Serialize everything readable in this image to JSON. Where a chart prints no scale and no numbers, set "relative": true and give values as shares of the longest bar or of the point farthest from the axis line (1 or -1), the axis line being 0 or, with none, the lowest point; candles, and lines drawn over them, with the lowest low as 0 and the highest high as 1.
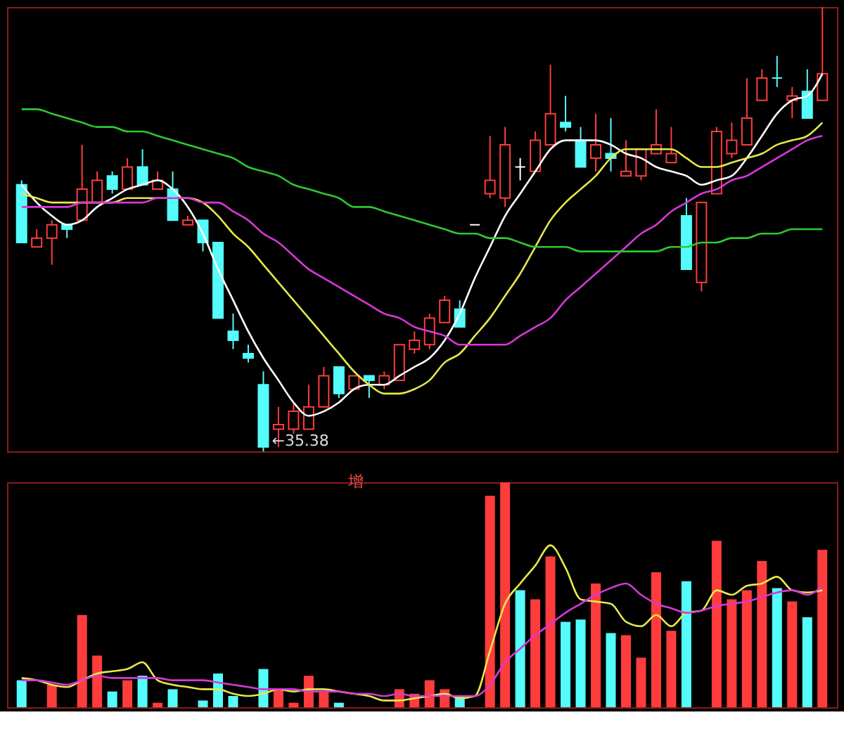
{
  "chart_data": [
    {
      "type": "candlestick",
      "relative": true,
      "categories": [
        null,
        null,
        null,
        null,
        null,
        null,
        null,
        null,
        null,
        null,
        null,
        null,
        null,
        null,
        null,
        null,
        null,
        null,
        null,
        null,
        null,
        null,
        null,
        null,
        null,
        null,
        null,
        null,
        null,
        null,
        null,
        null,
        null,
        null,
        null,
        null,
        null,
        null,
        null,
        null,
        null,
        null,
        null,
        null,
        null,
        null,
        null,
        null,
        null,
        null,
        null,
        null,
        null,
        null
      ],
      "ohlc": [
        [
          0.6,
          0.61,
          0.47,
          0.47
        ],
        [
          0.46,
          0.5,
          0.46,
          0.48
        ],
        [
          0.48,
          0.52,
          0.42,
          0.51
        ],
        [
          0.51,
          0.51,
          0.48,
          0.5
        ],
        [
          0.52,
          0.69,
          0.52,
          0.59
        ],
        [
          0.56,
          0.63,
          0.56,
          0.61
        ],
        [
          0.62,
          0.63,
          0.58,
          0.59
        ],
        [
          0.59,
          0.66,
          0.59,
          0.64
        ],
        [
          0.64,
          0.68,
          0.6,
          0.6
        ],
        [
          0.59,
          0.63,
          0.59,
          0.61
        ],
        [
          0.59,
          0.63,
          0.52,
          0.52
        ],
        [
          0.51,
          0.53,
          0.51,
          0.52
        ],
        [
          0.52,
          0.52,
          0.45,
          0.47
        ],
        [
          0.47,
          0.47,
          0.3,
          0.3
        ],
        [
          0.27,
          0.31,
          0.23,
          0.25
        ],
        [
          0.22,
          0.24,
          0.2,
          0.21
        ],
        [
          0.15,
          0.18,
          0,
          0.01
        ],
        [
          0.05,
          0.1,
          0.01,
          0.06
        ],
        [
          0.05,
          0.11,
          0.04,
          0.09
        ],
        [
          0.05,
          0.15,
          0.05,
          0.1
        ],
        [
          0.1,
          0.19,
          0.1,
          0.17
        ],
        [
          0.19,
          0.19,
          0.12,
          0.13
        ],
        [
          0.14,
          0.17,
          0.14,
          0.17
        ],
        [
          0.17,
          0.17,
          0.12,
          0.16
        ],
        [
          0.15,
          0.18,
          0.14,
          0.17
        ],
        [
          0.16,
          0.24,
          0.16,
          0.24
        ],
        [
          0.23,
          0.27,
          0.22,
          0.25
        ],
        [
          0.24,
          0.31,
          0.23,
          0.3
        ],
        [
          0.29,
          0.35,
          0.29,
          0.34
        ],
        [
          0.32,
          0.34,
          0.28,
          0.28
        ],
        [
          0.51,
          0.51,
          0.51,
          0.51
        ],
        [
          0.58,
          0.71,
          0.57,
          0.61
        ],
        [
          0.57,
          0.73,
          0.55,
          0.69
        ],
        [
          0.64,
          0.66,
          0.61,
          0.64
        ],
        [
          0.63,
          0.72,
          0.63,
          0.7
        ],
        [
          0.69,
          0.87,
          0.69,
          0.76
        ],
        [
          0.74,
          0.8,
          0.72,
          0.73
        ],
        [
          0.7,
          0.73,
          0.64,
          0.64
        ],
        [
          0.66,
          0.76,
          0.63,
          0.69
        ],
        [
          0.67,
          0.75,
          0.63,
          0.66
        ],
        [
          0.62,
          0.7,
          0.62,
          0.63
        ],
        [
          0.62,
          0.68,
          0.61,
          0.68
        ],
        [
          0.67,
          0.77,
          0.67,
          0.69
        ],
        [
          0.65,
          0.73,
          0.65,
          0.67
        ],
        [
          0.53,
          0.57,
          0.41,
          0.41
        ],
        [
          0.38,
          0.56,
          0.36,
          0.56
        ],
        [
          0.58,
          0.73,
          0.58,
          0.72
        ],
        [
          0.67,
          0.74,
          0.66,
          0.7
        ],
        [
          0.69,
          0.84,
          0.69,
          0.75
        ],
        [
          0.79,
          0.86,
          0.79,
          0.84
        ],
        [
          0.84,
          0.89,
          0.82,
          0.84
        ],
        [
          0.79,
          0.82,
          0.75,
          0.8
        ],
        [
          0.81,
          0.86,
          0.75,
          0.75
        ],
        [
          0.79,
          1.0,
          0.79,
          0.85
        ]
      ],
      "colors": [
        "#54fcfc",
        "#ff3c3c",
        "#ff3c3c",
        "#54fcfc",
        "#ff3c3c",
        "#ff3c3c",
        "#54fcfc",
        "#ff3c3c",
        "#54fcfc",
        "#ff3c3c",
        "#54fcfc",
        "#ff3c3c",
        "#54fcfc",
        "#54fcfc",
        "#54fcfc",
        "#54fcfc",
        "#54fcfc",
        "#ff3c3c",
        "#ff3c3c",
        "#ff3c3c",
        "#ff3c3c",
        "#54fcfc",
        "#ff3c3c",
        "#54fcfc",
        "#ff3c3c",
        "#ff3c3c",
        "#ff3c3c",
        "#ff3c3c",
        "#ff3c3c",
        "#54fcfc",
        "#ffffff",
        "#ff3c3c",
        "#ff3c3c",
        "#ffffff",
        "#ff3c3c",
        "#ff3c3c",
        "#54fcfc",
        "#54fcfc",
        "#ff3c3c",
        "#54fcfc",
        "#ff3c3c",
        "#ff3c3c",
        "#ff3c3c",
        "#ff3c3c",
        "#54fcfc",
        "#ff3c3c",
        "#ff3c3c",
        "#ff3c3c",
        "#ff3c3c",
        "#ff3c3c",
        "#54fcfc",
        "#ff3c3c",
        "#54fcfc",
        "#ff3c3c"
      ],
      "series": [
        {
          "type": "line",
          "color": "#ffffff",
          "values": [
            0.6,
            0.56,
            0.53,
            0.51,
            0.52,
            0.55,
            0.57,
            0.59,
            0.6,
            0.61,
            0.59,
            0.55,
            0.49,
            0.41,
            0.34,
            0.27,
            0.21,
            0.16,
            0.11,
            0.08,
            0.09,
            0.11,
            0.14,
            0.15,
            0.15,
            0.17,
            0.19,
            0.21,
            0.25,
            0.31,
            0.39,
            0.46,
            0.53,
            0.58,
            0.63,
            0.68,
            0.7,
            0.7,
            0.7,
            0.69,
            0.67,
            0.66,
            0.64,
            0.63,
            0.62,
            0.6,
            0.61,
            0.62,
            0.66,
            0.71,
            0.76,
            0.79,
            0.8,
            0.85
          ]
        },
        {
          "type": "line",
          "color": "#e8e84a",
          "values": [
            0.58,
            0.57,
            0.56,
            0.56,
            0.56,
            0.56,
            0.56,
            0.57,
            0.57,
            0.57,
            0.57,
            0.57,
            0.56,
            0.53,
            0.49,
            0.46,
            0.42,
            0.38,
            0.34,
            0.3,
            0.26,
            0.22,
            0.18,
            0.15,
            0.13,
            0.13,
            0.14,
            0.16,
            0.2,
            0.22,
            0.26,
            0.3,
            0.35,
            0.4,
            0.46,
            0.52,
            0.56,
            0.59,
            0.62,
            0.66,
            0.68,
            0.68,
            0.68,
            0.68,
            0.66,
            0.64,
            0.64,
            0.65,
            0.66,
            0.67,
            0.69,
            0.7,
            0.71,
            0.74
          ]
        },
        {
          "type": "line",
          "color": "#d638d6",
          "values": [
            0.55,
            0.55,
            0.55,
            0.55,
            0.56,
            0.56,
            0.56,
            0.56,
            0.56,
            0.57,
            0.57,
            0.57,
            0.56,
            0.56,
            0.54,
            0.52,
            0.49,
            0.47,
            0.44,
            0.41,
            0.39,
            0.37,
            0.35,
            0.33,
            0.31,
            0.3,
            0.28,
            0.27,
            0.26,
            0.24,
            0.24,
            0.24,
            0.24,
            0.26,
            0.28,
            0.3,
            0.34,
            0.37,
            0.4,
            0.43,
            0.46,
            0.49,
            0.51,
            0.54,
            0.56,
            0.58,
            0.59,
            0.61,
            0.62,
            0.64,
            0.66,
            0.68,
            0.7,
            0.71
          ]
        },
        {
          "type": "line",
          "color": "#2ec82e",
          "values": [
            0.77,
            0.77,
            0.76,
            0.75,
            0.74,
            0.73,
            0.73,
            0.72,
            0.72,
            0.71,
            0.7,
            0.69,
            0.68,
            0.67,
            0.66,
            0.64,
            0.63,
            0.62,
            0.6,
            0.59,
            0.58,
            0.57,
            0.55,
            0.55,
            0.54,
            0.53,
            0.52,
            0.51,
            0.5,
            0.49,
            0.49,
            0.48,
            0.48,
            0.47,
            0.46,
            0.46,
            0.46,
            0.45,
            0.45,
            0.45,
            0.45,
            0.45,
            0.45,
            0.46,
            0.46,
            0.47,
            0.47,
            0.48,
            0.48,
            0.49,
            0.49,
            0.5,
            0.5,
            0.5
          ]
        }
      ],
      "annotations": [
        "←35.38"
      ]
    },
    {
      "type": "bar",
      "relative": true,
      "categories": [
        null,
        null,
        null,
        null,
        null,
        null,
        null,
        null,
        null,
        null,
        null,
        null,
        null,
        null,
        null,
        null,
        null,
        null,
        null,
        null,
        null,
        null,
        null,
        null,
        null,
        null,
        null,
        null,
        null,
        null,
        null,
        null,
        null,
        null,
        null,
        null,
        null,
        null,
        null,
        null,
        null,
        null,
        null,
        null,
        null,
        null,
        null,
        null,
        null,
        null,
        null,
        null,
        null,
        null
      ],
      "series": [
        {
          "type": "bar",
          "values": [
            0.12,
            null,
            0.1,
            null,
            0.41,
            0.23,
            0.07,
            0.12,
            0.14,
            0.02,
            0.08,
            null,
            0.03,
            0.15,
            0.05,
            null,
            0.17,
            0.08,
            0.02,
            0.14,
            0.07,
            0.02,
            null,
            null,
            null,
            0.08,
            0.06,
            0.12,
            0.08,
            0.05,
            null,
            0.94,
            1.0,
            0.52,
            0.48,
            0.67,
            0.38,
            0.39,
            0.55,
            0.33,
            0.32,
            0.22,
            0.6,
            0.34,
            0.56,
            null,
            0.74,
            0.48,
            0.52,
            0.65,
            0.53,
            0.47,
            0.4,
            0.7
          ],
          "colors": [
            "#54fcfc",
            "#ff3c3c",
            "#ff3c3c",
            "#54fcfc",
            "#ff3c3c",
            "#ff3c3c",
            "#54fcfc",
            "#ff3c3c",
            "#54fcfc",
            "#ff3c3c",
            "#54fcfc",
            "#ff3c3c",
            "#54fcfc",
            "#54fcfc",
            "#54fcfc",
            "#54fcfc",
            "#54fcfc",
            "#ff3c3c",
            "#ff3c3c",
            "#ff3c3c",
            "#ff3c3c",
            "#54fcfc",
            "#ff3c3c",
            "#54fcfc",
            "#ff3c3c",
            "#ff3c3c",
            "#ff3c3c",
            "#ff3c3c",
            "#ff3c3c",
            "#54fcfc",
            "#ff3c3c",
            "#ff3c3c",
            "#ff3c3c",
            "#54fcfc",
            "#ff3c3c",
            "#ff3c3c",
            "#54fcfc",
            "#54fcfc",
            "#ff3c3c",
            "#54fcfc",
            "#ff3c3c",
            "#ff3c3c",
            "#ff3c3c",
            "#ff3c3c",
            "#54fcfc",
            "#ff3c3c",
            "#ff3c3c",
            "#ff3c3c",
            "#ff3c3c",
            "#ff3c3c",
            "#54fcfc",
            "#ff3c3c",
            "#54fcfc",
            "#ff3c3c"
          ]
        },
        {
          "type": "line",
          "color": "#e8e84a",
          "values": [
            0.13,
            0.12,
            0.1,
            0.09,
            0.12,
            0.15,
            0.16,
            0.17,
            0.2,
            0.12,
            0.1,
            0.09,
            0.08,
            0.08,
            0.06,
            0.05,
            0.06,
            0.08,
            0.07,
            0.08,
            0.08,
            0.07,
            0.06,
            0.05,
            0.03,
            0.03,
            0.04,
            0.05,
            0.06,
            0.04,
            0.05,
            0.25,
            0.46,
            0.55,
            0.63,
            0.72,
            0.62,
            0.48,
            0.47,
            0.46,
            0.38,
            0.36,
            0.41,
            0.36,
            0.42,
            0.43,
            0.52,
            0.5,
            0.54,
            0.55,
            0.58,
            0.52,
            0.51,
            0.52
          ]
        },
        {
          "type": "line",
          "color": "#d638d6",
          "values": [
            0.12,
            0.12,
            0.11,
            0.1,
            0.12,
            0.14,
            0.13,
            0.13,
            0.13,
            0.13,
            0.12,
            0.12,
            0.12,
            0.11,
            0.1,
            0.09,
            0.08,
            0.08,
            0.08,
            0.07,
            0.07,
            0.07,
            0.06,
            0.06,
            0.05,
            0.06,
            0.05,
            0.05,
            0.05,
            0.05,
            0.05,
            0.1,
            0.2,
            0.26,
            0.32,
            0.37,
            0.42,
            0.46,
            0.5,
            0.53,
            0.55,
            0.5,
            0.46,
            0.44,
            0.42,
            0.43,
            0.45,
            0.46,
            0.47,
            0.49,
            0.51,
            0.52,
            0.5,
            0.54
          ]
        }
      ],
      "annotations": [
        "增"
      ]
    }
  ]
}
